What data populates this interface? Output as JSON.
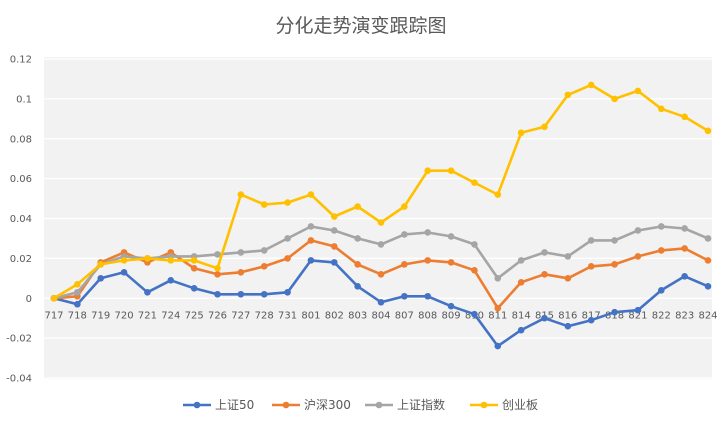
{
  "chart_data": {
    "type": "line",
    "title": "分化走势演变跟踪图",
    "xlabel": "",
    "ylabel": "",
    "categories": [
      "717",
      "718",
      "719",
      "720",
      "721",
      "724",
      "725",
      "726",
      "727",
      "728",
      "731",
      "801",
      "802",
      "803",
      "804",
      "807",
      "808",
      "809",
      "810",
      "811",
      "814",
      "815",
      "816",
      "817",
      "818",
      "821",
      "822",
      "823",
      "824"
    ],
    "ylim": [
      -0.04,
      0.12
    ],
    "yticks": [
      "0.12",
      "0.1",
      "0.08",
      "0.06",
      "0.04",
      "0.02",
      "0",
      "-0.02",
      "-0.04"
    ],
    "ytick_values": [
      0.12,
      0.1,
      0.08,
      0.06,
      0.04,
      0.02,
      0,
      -0.02,
      -0.04
    ],
    "grid": true,
    "legend": "bottom",
    "series": [
      {
        "name": "上证50",
        "color": "#4472C4",
        "values": [
          0,
          -0.003,
          0.01,
          0.013,
          0.003,
          0.009,
          0.005,
          0.002,
          0.002,
          0.002,
          0.003,
          0.019,
          0.018,
          0.006,
          -0.002,
          0.001,
          0.001,
          -0.004,
          -0.008,
          -0.024,
          -0.016,
          -0.01,
          -0.014,
          -0.011,
          -0.007,
          -0.006,
          0.004,
          0.011,
          0.006
        ]
      },
      {
        "name": "沪深300",
        "color": "#ED7D31",
        "values": [
          0,
          0.001,
          0.018,
          0.023,
          0.018,
          0.023,
          0.015,
          0.012,
          0.013,
          0.016,
          0.02,
          0.029,
          0.026,
          0.017,
          0.012,
          0.017,
          0.019,
          0.018,
          0.014,
          -0.005,
          0.008,
          0.012,
          0.01,
          0.016,
          0.017,
          0.021,
          0.024,
          0.025,
          0.019
        ]
      },
      {
        "name": "上证指数",
        "color": "#A5A5A5",
        "values": [
          0,
          0.003,
          0.017,
          0.021,
          0.02,
          0.021,
          0.021,
          0.022,
          0.023,
          0.024,
          0.03,
          0.036,
          0.034,
          0.03,
          0.027,
          0.032,
          0.033,
          0.031,
          0.027,
          0.01,
          0.019,
          0.023,
          0.021,
          0.029,
          0.029,
          0.034,
          0.036,
          0.035,
          0.03
        ]
      },
      {
        "name": "创业板",
        "color": "#FFC000",
        "values": [
          0,
          0.007,
          0.017,
          0.019,
          0.02,
          0.019,
          0.019,
          0.015,
          0.052,
          0.047,
          0.048,
          0.052,
          0.041,
          0.046,
          0.038,
          0.046,
          0.064,
          0.064,
          0.058,
          0.052,
          0.083,
          0.086,
          0.102,
          0.107,
          0.1,
          0.104,
          0.095,
          0.091,
          0.084
        ]
      }
    ]
  }
}
